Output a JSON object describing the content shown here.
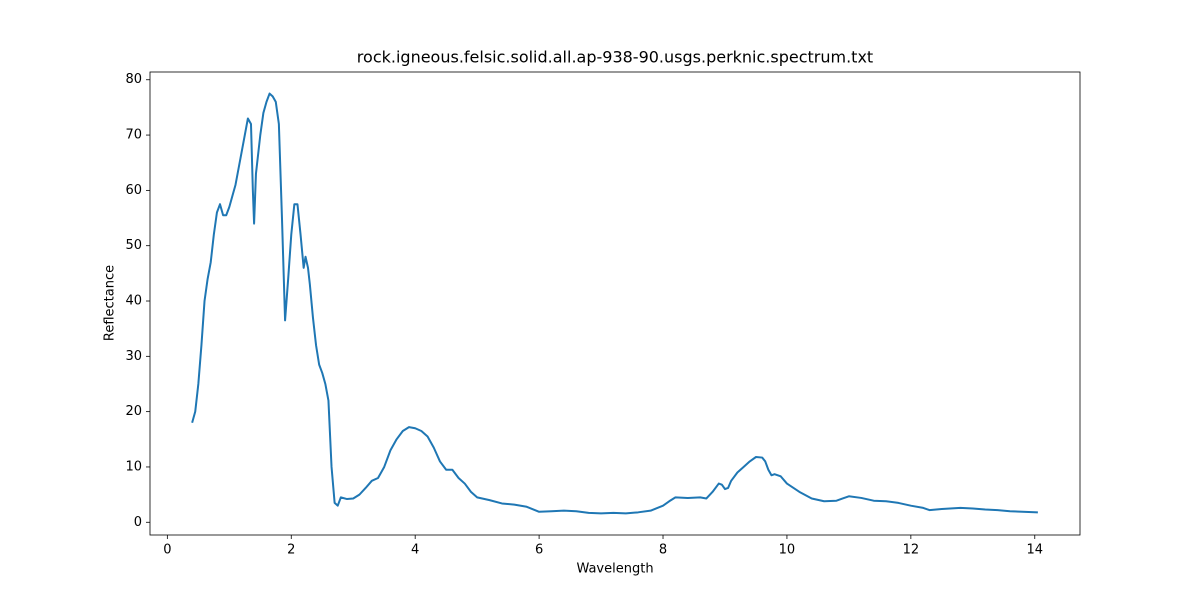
{
  "chart_data": {
    "type": "line",
    "title": "rock.igneous.felsic.solid.all.ap-938-90.usgs.perknic.spectrum.txt",
    "x_label": "Wavelength",
    "y_label": "Reflectance",
    "color": "#1f77b4",
    "grid": false,
    "xlim": [
      -0.28,
      14.73
    ],
    "ylim": [
      -2.3,
      81.4
    ],
    "xticks": [
      0,
      2,
      4,
      6,
      8,
      10,
      12,
      14
    ],
    "yticks": [
      0,
      10,
      20,
      30,
      40,
      50,
      60,
      70,
      80
    ],
    "x": [
      0.4,
      0.45,
      0.5,
      0.55,
      0.6,
      0.65,
      0.7,
      0.75,
      0.8,
      0.85,
      0.9,
      0.95,
      1.0,
      1.05,
      1.1,
      1.15,
      1.2,
      1.25,
      1.3,
      1.35,
      1.38,
      1.4,
      1.43,
      1.5,
      1.55,
      1.6,
      1.65,
      1.7,
      1.75,
      1.8,
      1.85,
      1.9,
      1.95,
      2.0,
      2.05,
      2.1,
      2.15,
      2.2,
      2.23,
      2.27,
      2.3,
      2.35,
      2.4,
      2.45,
      2.5,
      2.55,
      2.6,
      2.65,
      2.7,
      2.75,
      2.8,
      2.9,
      3.0,
      3.1,
      3.2,
      3.3,
      3.4,
      3.5,
      3.6,
      3.7,
      3.8,
      3.9,
      4.0,
      4.1,
      4.2,
      4.3,
      4.4,
      4.5,
      4.6,
      4.7,
      4.8,
      4.9,
      5.0,
      5.2,
      5.4,
      5.6,
      5.8,
      6.0,
      6.2,
      6.4,
      6.6,
      6.8,
      7.0,
      7.2,
      7.4,
      7.6,
      7.8,
      8.0,
      8.1,
      8.2,
      8.4,
      8.6,
      8.7,
      8.8,
      8.9,
      8.95,
      9.0,
      9.05,
      9.1,
      9.2,
      9.3,
      9.4,
      9.5,
      9.6,
      9.65,
      9.7,
      9.75,
      9.8,
      9.9,
      10.0,
      10.2,
      10.4,
      10.6,
      10.8,
      10.9,
      11.0,
      11.2,
      11.4,
      11.6,
      11.8,
      12.0,
      12.2,
      12.3,
      12.5,
      12.8,
      13.0,
      13.2,
      13.4,
      13.6,
      13.8,
      14.05
    ],
    "values": [
      18,
      20,
      25,
      32,
      40,
      44,
      47,
      52,
      56,
      57.5,
      55.5,
      55.5,
      57,
      59,
      61,
      64,
      67,
      70,
      73,
      72,
      60,
      54,
      63,
      70,
      74,
      76,
      77.5,
      77,
      76,
      72,
      55,
      36.5,
      44,
      52,
      57.5,
      57.5,
      52,
      46,
      48,
      46,
      43,
      37,
      32,
      28.5,
      27,
      25,
      22,
      10,
      3.5,
      3,
      4.5,
      4.2,
      4.3,
      5,
      6.2,
      7.5,
      8,
      10,
      13,
      15,
      16.5,
      17.2,
      17,
      16.5,
      15.5,
      13.5,
      11,
      9.5,
      9.5,
      8,
      7,
      5.5,
      4.5,
      4,
      3.4,
      3.2,
      2.8,
      1.9,
      2.0,
      2.1,
      2.0,
      1.7,
      1.6,
      1.7,
      1.6,
      1.8,
      2.1,
      3,
      3.8,
      4.5,
      4.4,
      4.5,
      4.3,
      5.5,
      7,
      6.8,
      6,
      6.2,
      7.5,
      9,
      10,
      11,
      11.8,
      11.7,
      11,
      9.5,
      8.5,
      8.7,
      8.3,
      7,
      5.5,
      4.3,
      3.8,
      3.9,
      4.3,
      4.7,
      4.4,
      3.9,
      3.8,
      3.5,
      3,
      2.6,
      2.2,
      2.4,
      2.6,
      2.5,
      2.3,
      2.2,
      2.0,
      1.9,
      1.8
    ]
  }
}
